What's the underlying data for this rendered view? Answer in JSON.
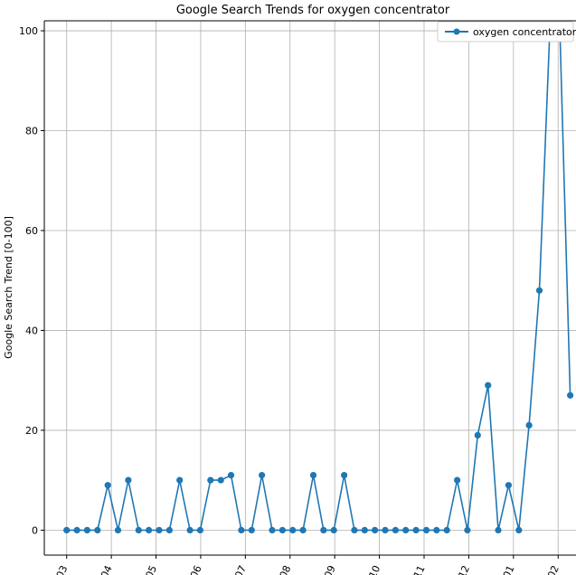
{
  "chart_data": {
    "type": "line",
    "title": "Google Search Trends for oxygen concentrator",
    "xlabel": "",
    "ylabel": "Google Search Trend [0-100]",
    "ylim": [
      -5,
      102
    ],
    "yticks": [
      0,
      20,
      40,
      60,
      80,
      100
    ],
    "xticks": [
      "03",
      "04",
      "05",
      "06",
      "07",
      "08",
      "09",
      "10",
      "11",
      "12",
      "01",
      "02"
    ],
    "grid": true,
    "legend": {
      "placement": "top-right"
    },
    "series": [
      {
        "name": "oxygen concentrator",
        "color": "#1f77b4",
        "x": [
          0.0,
          0.23,
          0.46,
          0.69,
          0.92,
          1.15,
          1.38,
          1.61,
          1.84,
          2.07,
          2.3,
          2.53,
          2.76,
          2.99,
          3.22,
          3.45,
          3.68,
          3.91,
          4.14,
          4.37,
          4.6,
          4.83,
          5.06,
          5.29,
          5.52,
          5.75,
          5.98,
          6.21,
          6.44,
          6.67,
          6.9,
          7.13,
          7.36,
          7.59,
          7.82,
          8.05,
          8.28,
          8.51,
          8.74,
          8.97,
          9.2,
          9.43,
          9.66,
          9.89,
          10.12,
          10.35,
          10.58,
          10.81,
          11.04,
          11.27
        ],
        "values": [
          0,
          0,
          0,
          0,
          9,
          0,
          10,
          0,
          0,
          0,
          0,
          10,
          0,
          0,
          10,
          10,
          11,
          0,
          0,
          11,
          0,
          0,
          0,
          0,
          11,
          0,
          0,
          11,
          0,
          0,
          0,
          0,
          0,
          0,
          0,
          0,
          0,
          0,
          10,
          0,
          19,
          29,
          0,
          9,
          0,
          21,
          48,
          99,
          100,
          27
        ]
      }
    ]
  }
}
